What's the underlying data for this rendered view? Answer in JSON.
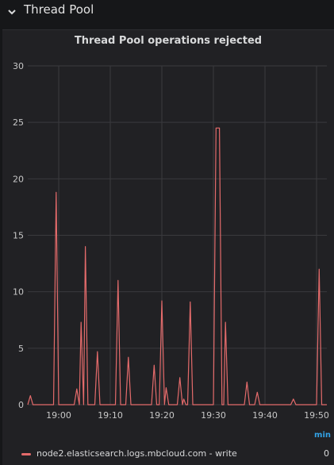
{
  "row": {
    "title": "Thread Pool",
    "toggle_icon": "chevron-down-icon"
  },
  "panel": {
    "title": "Thread Pool operations rejected",
    "unit_label": "min"
  },
  "colors": {
    "series": "#e46b6b",
    "grid": "#3a3a3e",
    "unit_link": "#33a2e5"
  },
  "legend": {
    "items": [
      {
        "label": "node2.elasticsearch.logs.mbcloud.com - write",
        "value": "0"
      }
    ]
  },
  "chart_data": {
    "type": "line",
    "title": "Thread Pool operations rejected",
    "xlabel": "",
    "ylabel": "",
    "ylim": [
      0,
      30
    ],
    "y_ticks": [
      "0",
      "5",
      "10",
      "15",
      "20",
      "25",
      "30"
    ],
    "x_ticks": [
      "19:00",
      "19:10",
      "19:20",
      "19:30",
      "19:40",
      "19:50"
    ],
    "grid": true,
    "legend_position": "bottom",
    "x_domain_minutes": [
      "18:54",
      "19:52"
    ],
    "series": [
      {
        "name": "node2.elasticsearch.logs.mbcloud.com - write",
        "points": [
          [
            "18:54",
            0
          ],
          [
            "18:54:30",
            0.8
          ],
          [
            "18:55",
            0
          ],
          [
            "18:59",
            0
          ],
          [
            "18:59:30",
            18.8
          ],
          [
            "19:00",
            0
          ],
          [
            "19:03",
            0
          ],
          [
            "19:03:30",
            1.4
          ],
          [
            "19:04",
            0
          ],
          [
            "19:04:20",
            7.3
          ],
          [
            "19:04:50",
            0
          ],
          [
            "19:05:10",
            14
          ],
          [
            "19:05:40",
            0
          ],
          [
            "19:07",
            0
          ],
          [
            "19:07:30",
            4.7
          ],
          [
            "19:08",
            0
          ],
          [
            "19:11",
            0
          ],
          [
            "19:11:30",
            11
          ],
          [
            "19:12",
            0
          ],
          [
            "19:13",
            0
          ],
          [
            "19:13:30",
            4.2
          ],
          [
            "19:14",
            0
          ],
          [
            "19:18",
            0
          ],
          [
            "19:18:30",
            3.5
          ],
          [
            "19:19",
            0
          ],
          [
            "19:19:30",
            0
          ],
          [
            "19:20",
            9.2
          ],
          [
            "19:20:30",
            0
          ],
          [
            "19:20:50",
            1.5
          ],
          [
            "19:21:20",
            0
          ],
          [
            "19:23",
            0
          ],
          [
            "19:23:30",
            2.4
          ],
          [
            "19:24",
            0
          ],
          [
            "19:24:15",
            0.5
          ],
          [
            "19:24:40",
            0
          ],
          [
            "19:25",
            0
          ],
          [
            "19:25:30",
            9.1
          ],
          [
            "19:26",
            0
          ],
          [
            "19:30",
            0
          ],
          [
            "19:30:30",
            24.5
          ],
          [
            "19:31:10",
            24.5
          ],
          [
            "19:31:40",
            0
          ],
          [
            "19:32",
            0
          ],
          [
            "19:32:20",
            7.3
          ],
          [
            "19:32:50",
            0
          ],
          [
            "19:36",
            0
          ],
          [
            "19:36:30",
            2.0
          ],
          [
            "19:37",
            0
          ],
          [
            "19:38",
            0
          ],
          [
            "19:38:30",
            1.1
          ],
          [
            "19:39",
            0
          ],
          [
            "19:45",
            0
          ],
          [
            "19:45:30",
            0.5
          ],
          [
            "19:46",
            0
          ],
          [
            "19:50",
            0
          ],
          [
            "19:50:30",
            12
          ],
          [
            "19:51",
            0
          ],
          [
            "19:52",
            0
          ]
        ]
      }
    ]
  }
}
